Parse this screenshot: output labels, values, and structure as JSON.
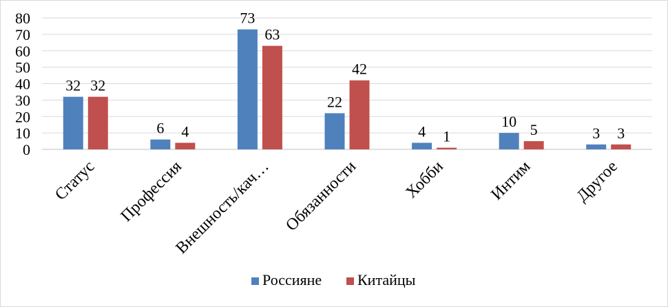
{
  "chart_data": {
    "type": "bar",
    "categories": [
      "Статус",
      "Профессия",
      "Внешность/кач…",
      "Обязанности",
      "Хобби",
      "Интим",
      "Другое"
    ],
    "series": [
      {
        "name": "Россияне",
        "values": [
          32,
          6,
          73,
          22,
          4,
          10,
          3
        ],
        "color": "#4f81bd"
      },
      {
        "name": "Китайцы",
        "values": [
          32,
          4,
          63,
          42,
          1,
          5,
          3
        ],
        "color": "#c0504d"
      }
    ],
    "ylim": [
      0,
      80
    ],
    "yticks": [
      0,
      10,
      20,
      30,
      40,
      50,
      60,
      70,
      80
    ],
    "grid": true,
    "legend": "bottom",
    "data_labels": true
  }
}
